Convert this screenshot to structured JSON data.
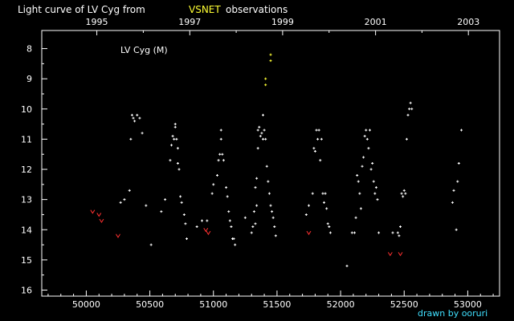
{
  "chart_data": {
    "type": "scatter",
    "title_parts": [
      "Light curve of LV Cyg from",
      "VSNET",
      "observations"
    ],
    "object_label": "LV Cyg (M)",
    "credit": "drawn by ooruri",
    "xlim": [
      49650,
      53250
    ],
    "ylim": [
      16.2,
      7.4
    ],
    "y_inverted": true,
    "x_ticks": [
      50000,
      50500,
      51000,
      51500,
      52000,
      52500,
      53000
    ],
    "x_tick_labels": [
      "50000",
      "50500",
      "51000",
      "51500",
      "52000",
      "52500",
      "53000"
    ],
    "top_ticks": [
      50083,
      50814,
      51544,
      52275,
      53005
    ],
    "top_tick_labels": [
      "1995",
      "1997",
      "1999",
      "2001",
      "2003"
    ],
    "y_ticks": [
      8,
      9,
      10,
      11,
      12,
      13,
      14,
      15,
      16
    ],
    "y_tick_labels": [
      "8",
      "9",
      "10",
      "11",
      "12",
      "13",
      "14",
      "15",
      "16"
    ],
    "grid": false,
    "colors": {
      "background": "#000000",
      "axes": "#ffffff",
      "observation": "#ffffff",
      "upper_limit": "#ff3030",
      "yellow_point": "#ffff33",
      "credit": "#40e0ff"
    },
    "series": [
      {
        "type": "observations",
        "x": [
          50270,
          50300,
          50340,
          50350,
          50360,
          50370,
          50380,
          50400,
          50420,
          50440,
          50470,
          50510,
          50590,
          50620,
          50660,
          50670,
          50680,
          50690,
          50700,
          50700,
          50710,
          50720,
          50720,
          50730,
          50740,
          50750,
          50770,
          50780,
          50790,
          50870,
          50910,
          50950,
          50990,
          51000,
          51030,
          51040,
          51050,
          51060,
          51060,
          51070,
          51080,
          51100,
          51110,
          51120,
          51130,
          51140,
          51150,
          51160,
          51170,
          51250,
          51300,
          51310,
          51320,
          51330,
          51330,
          51340,
          51340,
          51350,
          51350,
          51360,
          51370,
          51380,
          51390,
          51390,
          51400,
          51410,
          51420,
          51430,
          51440,
          51450,
          51460,
          51470,
          51480,
          51490,
          51730,
          51750,
          51780,
          51790,
          51800,
          51810,
          51820,
          51830,
          51840,
          51850,
          51860,
          51870,
          51880,
          51890,
          51900,
          51910,
          51920,
          52050,
          52090,
          52110,
          52120,
          52130,
          52140,
          52150,
          52160,
          52170,
          52180,
          52190,
          52200,
          52210,
          52220,
          52230,
          52240,
          52250,
          52260,
          52270,
          52280,
          52290,
          52300,
          52410,
          52450,
          52460,
          52470,
          52480,
          52490,
          52500,
          52510,
          52520,
          52530,
          52540,
          52550,
          52560,
          52880,
          52890,
          52910,
          52920,
          52930,
          52950
        ],
        "y": [
          13.1,
          13.0,
          12.7,
          11.0,
          10.2,
          10.3,
          10.4,
          10.2,
          10.3,
          10.8,
          13.2,
          14.5,
          13.4,
          13.0,
          11.7,
          11.2,
          10.9,
          11.0,
          10.5,
          10.6,
          11.0,
          11.3,
          11.8,
          12.0,
          12.9,
          13.1,
          13.5,
          13.8,
          14.3,
          13.9,
          13.7,
          13.7,
          12.8,
          12.5,
          12.2,
          11.7,
          11.5,
          10.7,
          11.0,
          11.5,
          11.7,
          12.6,
          12.9,
          13.4,
          13.7,
          13.9,
          14.3,
          14.3,
          14.5,
          13.6,
          14.1,
          13.9,
          13.4,
          13.8,
          12.6,
          13.2,
          12.3,
          11.3,
          10.7,
          10.6,
          10.9,
          10.8,
          10.2,
          11.0,
          10.7,
          11.0,
          11.9,
          12.4,
          12.8,
          13.2,
          13.4,
          13.6,
          13.9,
          14.2,
          13.5,
          13.2,
          12.8,
          11.3,
          11.4,
          10.7,
          11.0,
          10.7,
          11.7,
          11.0,
          12.8,
          13.1,
          12.8,
          13.3,
          13.8,
          13.9,
          14.1,
          15.2,
          14.1,
          14.1,
          13.6,
          12.2,
          12.4,
          12.8,
          13.3,
          11.9,
          11.6,
          10.9,
          10.7,
          11.0,
          11.3,
          10.7,
          12.0,
          11.8,
          12.4,
          12.8,
          12.6,
          13.0,
          14.1,
          14.1,
          14.1,
          14.2,
          13.9,
          12.8,
          12.9,
          12.7,
          12.8,
          11.0,
          10.2,
          10.0,
          9.8,
          10.0,
          13.1,
          12.7,
          14.0,
          12.4,
          11.8,
          10.7
        ]
      },
      {
        "type": "upper_limits",
        "x": [
          50050,
          50100,
          50120,
          50250,
          50940,
          50960,
          51750,
          52390,
          52470
        ],
        "y": [
          13.4,
          13.5,
          13.7,
          14.2,
          14.0,
          14.1,
          14.1,
          14.8,
          14.8
        ]
      },
      {
        "type": "yellow_points",
        "x": [
          51410,
          51410,
          51450,
          51450
        ],
        "y": [
          9.0,
          9.2,
          8.2,
          8.4
        ]
      }
    ]
  }
}
